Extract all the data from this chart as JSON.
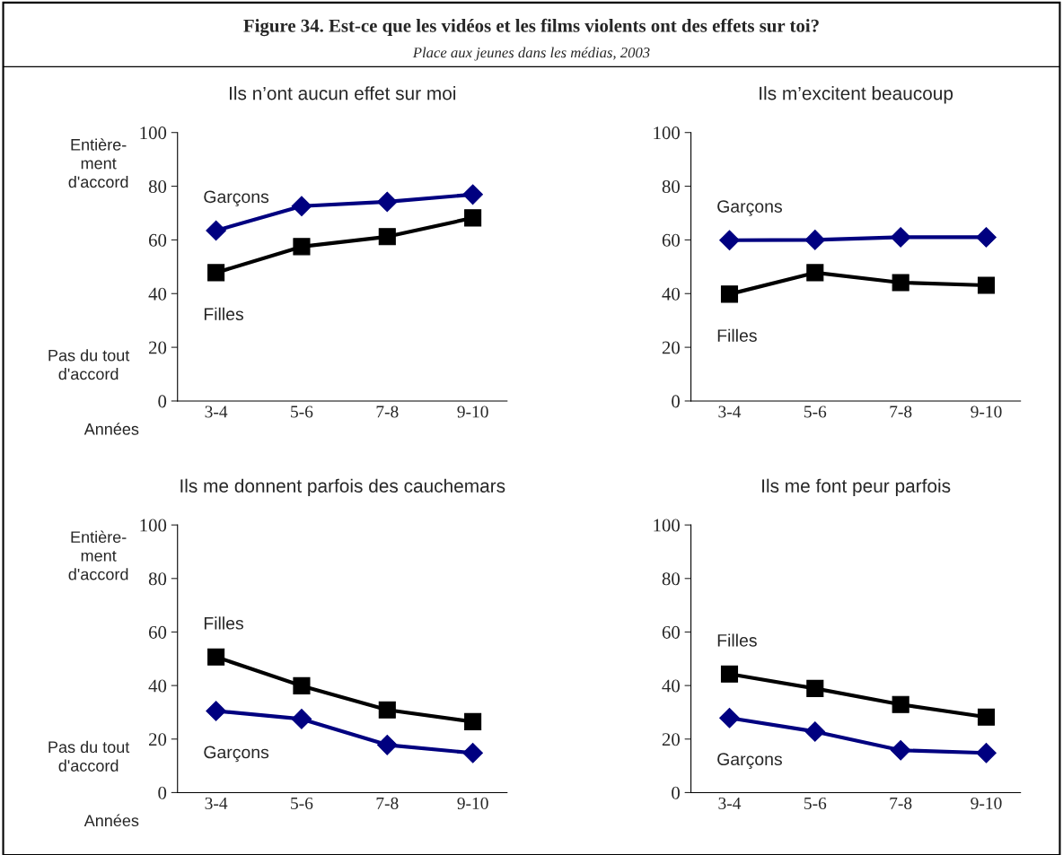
{
  "chart_data": [
    {
      "type": "other",
      "title": "Figure 34. Est-ce que les vidéos et les films violents ont des effets sur toi?",
      "subtitle": "Place aux jeunes dans les médias, 2003"
    },
    {
      "type": "line",
      "title": "Ils n’ont aucun effet sur moi",
      "categories": [
        "3-4",
        "5-6",
        "7-8",
        "9-10"
      ],
      "ylim": [
        0,
        100
      ],
      "yticks": [
        0,
        20,
        40,
        60,
        80,
        100
      ],
      "grid": false,
      "legend": false,
      "annotations": [
        "Entière-\nment\nd'accord",
        "Pas du tout\nd'accord",
        "Années"
      ],
      "series": [
        {
          "name": "Garçons",
          "color": "#000080",
          "marker": "diamond",
          "values": [
            63.5,
            72.6,
            74.2,
            76.9
          ]
        },
        {
          "name": "Filles",
          "color": "#000000",
          "marker": "square",
          "values": [
            47.8,
            57.5,
            61.2,
            68.2
          ]
        }
      ]
    },
    {
      "type": "line",
      "title": "Ils m’excitent beaucoup",
      "categories": [
        "3-4",
        "5-6",
        "7-8",
        "9-10"
      ],
      "ylim": [
        0,
        100
      ],
      "yticks": [
        0,
        20,
        40,
        60,
        80,
        100
      ],
      "grid": false,
      "legend": false,
      "series": [
        {
          "name": "Garçons",
          "color": "#000080",
          "marker": "diamond",
          "values": [
            59.9,
            60,
            61,
            61
          ]
        },
        {
          "name": "Filles",
          "color": "#000000",
          "marker": "square",
          "values": [
            39.8,
            47.8,
            44.1,
            43.1
          ]
        }
      ]
    },
    {
      "type": "line",
      "title": "Ils me donnent parfois des cauchemars",
      "categories": [
        "3-4",
        "5-6",
        "7-8",
        "9-10"
      ],
      "ylim": [
        0,
        100
      ],
      "yticks": [
        0,
        20,
        40,
        60,
        80,
        100
      ],
      "grid": false,
      "legend": false,
      "annotations": [
        "Entière-\nment\nd'accord",
        "Pas du tout\nd'accord",
        "Années"
      ],
      "series": [
        {
          "name": "Filles",
          "color": "#000000",
          "marker": "square",
          "values": [
            50.7,
            39.9,
            30.9,
            26.5
          ]
        },
        {
          "name": "Garçons",
          "color": "#000080",
          "marker": "diamond",
          "values": [
            30.5,
            27.5,
            17.8,
            14.8
          ]
        }
      ]
    },
    {
      "type": "line",
      "title": "Ils me font peur parfois",
      "categories": [
        "3-4",
        "5-6",
        "7-8",
        "9-10"
      ],
      "ylim": [
        0,
        100
      ],
      "yticks": [
        0,
        20,
        40,
        60,
        80,
        100
      ],
      "grid": false,
      "legend": false,
      "series": [
        {
          "name": "Filles",
          "color": "#000000",
          "marker": "square",
          "values": [
            44.3,
            38.9,
            32.9,
            28.2
          ]
        },
        {
          "name": "Garçons",
          "color": "#000080",
          "marker": "diamond",
          "values": [
            27.9,
            22.8,
            15.8,
            14.8
          ]
        }
      ]
    }
  ]
}
